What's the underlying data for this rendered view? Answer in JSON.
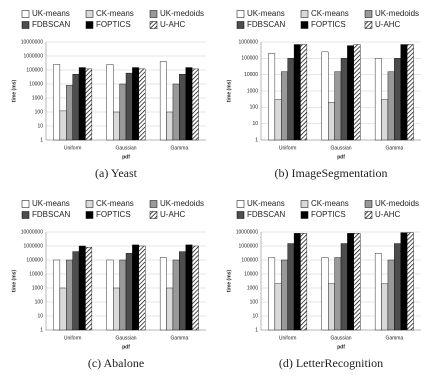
{
  "chart_data": [
    {
      "type": "bar",
      "title": "(a) Yeast",
      "x_label": "pdf",
      "y_label": "time (ms)",
      "log_scale": true,
      "categories": [
        "Uniform",
        "Gaussian",
        "Gamma"
      ],
      "ylim": [
        1,
        10000000
      ],
      "yticks": [
        1,
        10,
        100,
        1000,
        10000,
        100000,
        1000000,
        10000000
      ],
      "series": [
        {
          "name": "UK-means",
          "color": "#ffffff",
          "values": [
            250000,
            250000,
            400000
          ]
        },
        {
          "name": "CK-means",
          "color": "#d9d9d9",
          "values": [
            120,
            100,
            100
          ]
        },
        {
          "name": "UK-medoids",
          "color": "#999999",
          "values": [
            8000,
            10000,
            10000
          ]
        },
        {
          "name": "FDBSCAN",
          "color": "#4d4d4d",
          "values": [
            50000,
            60000,
            50000
          ]
        },
        {
          "name": "FOPTICS",
          "color": "#000000",
          "values": [
            150000,
            150000,
            150000
          ]
        },
        {
          "name": "U-AHC",
          "color": "#000000",
          "pattern": "diagonal",
          "values": [
            120000,
            120000,
            120000
          ]
        }
      ]
    },
    {
      "type": "bar",
      "title": "(b) ImageSegmentation",
      "x_label": "pdf",
      "y_label": "time (ms)",
      "log_scale": true,
      "categories": [
        "Uniform",
        "Gaussian",
        "Gamma"
      ],
      "ylim": [
        1,
        1000000
      ],
      "yticks": [
        1,
        10,
        100,
        1000,
        10000,
        100000,
        1000000
      ],
      "series": [
        {
          "name": "UK-means",
          "color": "#ffffff",
          "values": [
            200000,
            250000,
            100000
          ]
        },
        {
          "name": "CK-means",
          "color": "#d9d9d9",
          "values": [
            300,
            200,
            300
          ]
        },
        {
          "name": "UK-medoids",
          "color": "#999999",
          "values": [
            15000,
            15000,
            15000
          ]
        },
        {
          "name": "FDBSCAN",
          "color": "#4d4d4d",
          "values": [
            100000,
            100000,
            100000
          ]
        },
        {
          "name": "FOPTICS",
          "color": "#000000",
          "values": [
            700000,
            600000,
            700000
          ]
        },
        {
          "name": "U-AHC",
          "color": "#000000",
          "pattern": "diagonal",
          "values": [
            700000,
            700000,
            700000
          ]
        }
      ]
    },
    {
      "type": "bar",
      "title": "(c) Abalone",
      "x_label": "pdf",
      "y_label": "time (ms)",
      "log_scale": true,
      "categories": [
        "Uniform",
        "Gaussian",
        "Gamma"
      ],
      "ylim": [
        1,
        10000000
      ],
      "yticks": [
        1,
        10,
        100,
        1000,
        10000,
        100000,
        1000000,
        10000000
      ],
      "series": [
        {
          "name": "UK-means",
          "color": "#ffffff",
          "values": [
            100000,
            100000,
            150000
          ]
        },
        {
          "name": "CK-means",
          "color": "#d9d9d9",
          "values": [
            1000,
            1000,
            1000
          ]
        },
        {
          "name": "UK-medoids",
          "color": "#999999",
          "values": [
            100000,
            100000,
            100000
          ]
        },
        {
          "name": "FDBSCAN",
          "color": "#4d4d4d",
          "values": [
            400000,
            300000,
            400000
          ]
        },
        {
          "name": "FOPTICS",
          "color": "#000000",
          "values": [
            1000000,
            1200000,
            1200000
          ]
        },
        {
          "name": "U-AHC",
          "color": "#000000",
          "pattern": "diagonal",
          "values": [
            800000,
            1000000,
            1000000
          ]
        }
      ]
    },
    {
      "type": "bar",
      "title": "(d) LetterRecognition",
      "x_label": "pdf",
      "y_label": "time (ms)",
      "log_scale": true,
      "categories": [
        "Uniform",
        "Gaussian",
        "Gamma"
      ],
      "ylim": [
        1,
        10000000
      ],
      "yticks": [
        1,
        10,
        100,
        1000,
        10000,
        100000,
        1000000,
        10000000
      ],
      "series": [
        {
          "name": "UK-means",
          "color": "#ffffff",
          "values": [
            150000,
            150000,
            300000
          ]
        },
        {
          "name": "CK-means",
          "color": "#d9d9d9",
          "values": [
            2000,
            2000,
            2000
          ]
        },
        {
          "name": "UK-medoids",
          "color": "#999999",
          "values": [
            100000,
            150000,
            100000
          ]
        },
        {
          "name": "FDBSCAN",
          "color": "#4d4d4d",
          "values": [
            1500000,
            1500000,
            1500000
          ]
        },
        {
          "name": "FOPTICS",
          "color": "#000000",
          "values": [
            8000000,
            8000000,
            9000000
          ]
        },
        {
          "name": "U-AHC",
          "color": "#000000",
          "pattern": "diagonal",
          "values": [
            8000000,
            8000000,
            9000000
          ]
        }
      ]
    }
  ]
}
